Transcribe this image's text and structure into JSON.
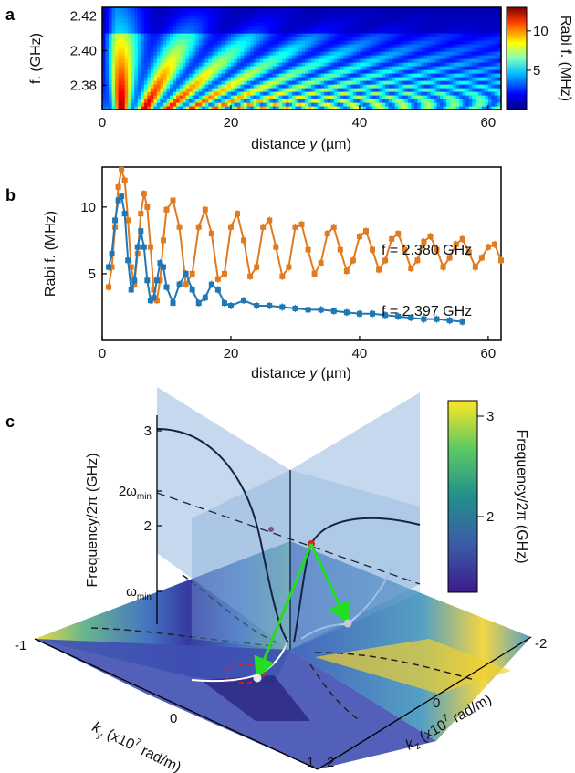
{
  "panels": {
    "a": {
      "label": "a"
    },
    "b": {
      "label": "b"
    },
    "c": {
      "label": "c"
    }
  },
  "chart_data": [
    {
      "type": "heatmap",
      "panel": "a",
      "xlabel_pre": "distance ",
      "xlabel_var": "y",
      "xlabel_post": " (µm)",
      "ylabel": "f. (GHz)",
      "xlim": [
        0,
        62
      ],
      "ylim": [
        2.366,
        2.425
      ],
      "xticks": [
        0,
        20,
        40,
        60
      ],
      "yticks": [
        2.38,
        2.4,
        2.42
      ],
      "colorbar": {
        "label": "Rabi f. (MHz)",
        "range": [
          0,
          13
        ],
        "ticks": [
          5,
          10
        ],
        "colormap": "jet"
      }
    },
    {
      "type": "line",
      "panel": "b",
      "xlabel_pre": "distance ",
      "xlabel_var": "y",
      "xlabel_post": " (µm)",
      "ylabel": "Rabi f. (MHz)",
      "xlim": [
        0,
        62
      ],
      "ylim": [
        0,
        13
      ],
      "xticks": [
        0,
        20,
        40,
        60
      ],
      "yticks": [
        5,
        10
      ],
      "series": [
        {
          "name": "f = 2.380 GHz",
          "color": "#e07b1f",
          "x": [
            1,
            1.5,
            2,
            2.5,
            3,
            3.5,
            4,
            4.5,
            5,
            5.5,
            6,
            6.5,
            7,
            7.5,
            8,
            8.5,
            9,
            9.5,
            10,
            11,
            12,
            13,
            14,
            15,
            16,
            17,
            18,
            19,
            20,
            21,
            22,
            23,
            24,
            25,
            26,
            27,
            28,
            29,
            30,
            31,
            32,
            33,
            34,
            35,
            36,
            37,
            38,
            39,
            40,
            41,
            42,
            43,
            44,
            45,
            46,
            47,
            48,
            49,
            50,
            51,
            52,
            53,
            54,
            55,
            56,
            57,
            58,
            59,
            60,
            61,
            62
          ],
          "y": [
            4.0,
            5.5,
            8.5,
            11.5,
            12.8,
            12.0,
            9.0,
            5.5,
            4.2,
            6.5,
            9.5,
            11.0,
            10.0,
            7.0,
            3.8,
            3.0,
            4.5,
            7.5,
            9.8,
            10.5,
            8.5,
            4.2,
            5.0,
            8.5,
            9.8,
            8.0,
            4.6,
            5.0,
            8.5,
            9.5,
            7.5,
            4.8,
            5.5,
            8.5,
            9.0,
            7.0,
            4.8,
            5.5,
            8.5,
            8.7,
            6.8,
            5.0,
            5.8,
            8.0,
            8.5,
            6.8,
            5.2,
            6.0,
            7.8,
            8.2,
            6.8,
            5.3,
            6.0,
            7.6,
            8.0,
            6.8,
            5.4,
            6.0,
            7.4,
            7.8,
            6.8,
            5.5,
            6.2,
            7.2,
            7.6,
            6.6,
            5.5,
            6.2,
            7.0,
            7.2,
            6.0
          ]
        },
        {
          "name": "f = 2.397 GHz",
          "color": "#1f77b4",
          "x": [
            1,
            1.5,
            2,
            2.5,
            3,
            3.5,
            4,
            4.5,
            5,
            5.5,
            6,
            6.5,
            7,
            7.5,
            8,
            8.5,
            9,
            9.5,
            10,
            11,
            12,
            13,
            14,
            15,
            16,
            17,
            18,
            19,
            20,
            22,
            24,
            26,
            28,
            30,
            32,
            34,
            36,
            38,
            40,
            42,
            44,
            46,
            48,
            50,
            52,
            54,
            56
          ],
          "y": [
            5.5,
            6.5,
            9.0,
            10.5,
            10.8,
            9.5,
            6.0,
            3.8,
            4.5,
            7.0,
            8.2,
            7.0,
            4.5,
            3.0,
            3.2,
            4.5,
            5.8,
            5.5,
            4.0,
            2.8,
            4.2,
            5.0,
            3.8,
            2.8,
            3.2,
            4.2,
            3.8,
            2.8,
            2.6,
            3.0,
            2.6,
            2.6,
            2.5,
            2.4,
            2.3,
            2.3,
            2.2,
            2.1,
            2.0,
            2.0,
            1.9,
            1.8,
            1.7,
            1.6,
            1.6,
            1.5,
            1.4
          ]
        }
      ]
    },
    {
      "type": "surface",
      "panel": "c",
      "zlabel": "Frequency/2π (GHz)",
      "zticks": [
        "3",
        "2",
        "2ω",
        "ω"
      ],
      "zticks_sub": [
        "",
        "",
        "min",
        "min"
      ],
      "ky_label_pre": "k",
      "ky_label_sub": "y",
      "ky_label_post": " (x10",
      "ky_label_sup": "7",
      "ky_label_end": " rad/m)",
      "kz_label_pre": "k",
      "kz_label_sub": "z",
      "kz_label_post": " (x10",
      "kz_label_sup": "7",
      "kz_label_end": " rad/m)",
      "ky_ticks": [
        "-1",
        "0",
        "1"
      ],
      "kz_ticks": [
        "-2",
        "0",
        "2"
      ],
      "colorbar": {
        "label": "Frequency/2π (GHz)",
        "ticks": [
          "3",
          "2"
        ],
        "colormap": "viridis"
      }
    }
  ]
}
